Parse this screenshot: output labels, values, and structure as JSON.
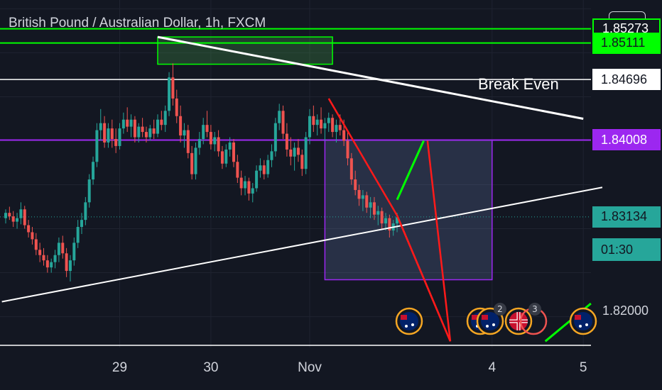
{
  "header": {
    "title": "British Pound / Australian Dollar, 1h, FXCM",
    "currency": "AUD"
  },
  "chart_data": {
    "type": "candlestick",
    "title": "British Pound / Australian Dollar, 1h, FXCM",
    "ylim": [
      1.8165,
      1.856
    ],
    "price_axis": {
      "ticks": [
        "1.82000"
      ],
      "labels": [
        {
          "value": 1.85273,
          "text": "1.85273",
          "bg": "#131722",
          "fg": "#ffffff",
          "border": "#00ff00"
        },
        {
          "value": 1.85111,
          "text": "1.85111",
          "bg": "#00ff00",
          "fg": "#131722"
        },
        {
          "value": 1.84696,
          "text": "1.84696",
          "bg": "#ffffff",
          "fg": "#131722"
        },
        {
          "value": 1.84008,
          "text": "1.84008",
          "bg": "#9c27f0",
          "fg": "#ffffff"
        },
        {
          "value": 1.83134,
          "text": "1.83134",
          "bg": "#26a69a",
          "fg": "#131722"
        }
      ],
      "countdown": "01:30"
    },
    "dates": [
      {
        "label": "29",
        "index": 30
      },
      {
        "label": "30",
        "index": 54
      },
      {
        "label": "Nov",
        "index": 80
      },
      {
        "label": "4",
        "index": 128
      },
      {
        "label": "5",
        "index": 152
      }
    ],
    "annotations": [
      {
        "text": "Break Even"
      }
    ],
    "event_badges": [
      "2",
      "3"
    ],
    "colors": {
      "up": "#26a69a",
      "down": "#ef5350",
      "horizontal_green": "#00ff00",
      "purple": "#9c27f0",
      "trend": "#ffffff",
      "red_lines": "#ff1a1a",
      "green_line": "#00ff00"
    },
    "candles_ohlc": [
      [
        1.8312,
        1.8322,
        1.8306,
        1.8318
      ],
      [
        1.8318,
        1.8325,
        1.831,
        1.8314
      ],
      [
        1.8314,
        1.832,
        1.8302,
        1.8308
      ],
      [
        1.8308,
        1.8318,
        1.83,
        1.8312
      ],
      [
        1.8312,
        1.833,
        1.8305,
        1.8322
      ],
      [
        1.8322,
        1.8326,
        1.83,
        1.8304
      ],
      [
        1.8304,
        1.831,
        1.829,
        1.8296
      ],
      [
        1.8296,
        1.8302,
        1.8282,
        1.8288
      ],
      [
        1.8288,
        1.8295,
        1.827,
        1.8276
      ],
      [
        1.8276,
        1.8284,
        1.8262,
        1.827
      ],
      [
        1.827,
        1.8278,
        1.8258,
        1.8264
      ],
      [
        1.8264,
        1.827,
        1.825,
        1.8256
      ],
      [
        1.8256,
        1.8266,
        1.825,
        1.8262
      ],
      [
        1.8262,
        1.8276,
        1.8255,
        1.827
      ],
      [
        1.827,
        1.829,
        1.8262,
        1.8284
      ],
      [
        1.8284,
        1.8292,
        1.8266,
        1.8272
      ],
      [
        1.8272,
        1.8278,
        1.8245,
        1.8252
      ],
      [
        1.8252,
        1.827,
        1.824,
        1.8264
      ],
      [
        1.8264,
        1.829,
        1.8258,
        1.8284
      ],
      [
        1.8284,
        1.831,
        1.8278,
        1.8302
      ],
      [
        1.8302,
        1.8318,
        1.8294,
        1.831
      ],
      [
        1.831,
        1.8336,
        1.8304,
        1.833
      ],
      [
        1.833,
        1.8362,
        1.8324,
        1.8356
      ],
      [
        1.8356,
        1.8382,
        1.835,
        1.8376
      ],
      [
        1.8376,
        1.842,
        1.837,
        1.8412
      ],
      [
        1.8412,
        1.8436,
        1.84,
        1.842
      ],
      [
        1.842,
        1.8428,
        1.8392,
        1.8398
      ],
      [
        1.8398,
        1.842,
        1.8392,
        1.8414
      ],
      [
        1.8414,
        1.8424,
        1.8392,
        1.8402
      ],
      [
        1.8402,
        1.8414,
        1.8386,
        1.8394
      ],
      [
        1.8394,
        1.842,
        1.839,
        1.8414
      ],
      [
        1.8414,
        1.8432,
        1.8408,
        1.8424
      ],
      [
        1.8424,
        1.8438,
        1.841,
        1.8416
      ],
      [
        1.8416,
        1.843,
        1.8404,
        1.8424
      ],
      [
        1.8424,
        1.8428,
        1.8398,
        1.8404
      ],
      [
        1.8404,
        1.842,
        1.8398,
        1.8416
      ],
      [
        1.8416,
        1.8426,
        1.8404,
        1.841
      ],
      [
        1.841,
        1.8416,
        1.8398,
        1.8404
      ],
      [
        1.8404,
        1.8418,
        1.84,
        1.8414
      ],
      [
        1.8414,
        1.8424,
        1.8402,
        1.8408
      ],
      [
        1.8408,
        1.843,
        1.8404,
        1.8424
      ],
      [
        1.8424,
        1.8434,
        1.8412,
        1.8418
      ],
      [
        1.8418,
        1.844,
        1.841,
        1.8434
      ],
      [
        1.8434,
        1.8478,
        1.8428,
        1.8472
      ],
      [
        1.8472,
        1.8488,
        1.844,
        1.8448
      ],
      [
        1.8448,
        1.8458,
        1.842,
        1.8428
      ],
      [
        1.8428,
        1.844,
        1.8398,
        1.8406
      ],
      [
        1.8406,
        1.842,
        1.8392,
        1.8412
      ],
      [
        1.8412,
        1.8418,
        1.838,
        1.8386
      ],
      [
        1.8386,
        1.8394,
        1.8356,
        1.8362
      ],
      [
        1.8362,
        1.8398,
        1.8356,
        1.8392
      ],
      [
        1.8392,
        1.841,
        1.8384,
        1.8402
      ],
      [
        1.8402,
        1.8426,
        1.8396,
        1.8418
      ],
      [
        1.8418,
        1.8434,
        1.8404,
        1.841
      ],
      [
        1.841,
        1.8418,
        1.839,
        1.8396
      ],
      [
        1.8396,
        1.841,
        1.8388,
        1.8404
      ],
      [
        1.8404,
        1.8412,
        1.8382,
        1.8388
      ],
      [
        1.8388,
        1.8394,
        1.8368,
        1.8374
      ],
      [
        1.8374,
        1.8396,
        1.837,
        1.839
      ],
      [
        1.839,
        1.8404,
        1.8382,
        1.8398
      ],
      [
        1.8398,
        1.8402,
        1.837,
        1.8376
      ],
      [
        1.8376,
        1.8384,
        1.8352,
        1.8358
      ],
      [
        1.8358,
        1.8366,
        1.8338,
        1.8346
      ],
      [
        1.8346,
        1.836,
        1.8338,
        1.8354
      ],
      [
        1.8354,
        1.8358,
        1.8332,
        1.834
      ],
      [
        1.834,
        1.8352,
        1.833,
        1.8346
      ],
      [
        1.8346,
        1.8372,
        1.8342,
        1.8366
      ],
      [
        1.8366,
        1.838,
        1.8358,
        1.8372
      ],
      [
        1.8372,
        1.8378,
        1.8356,
        1.8362
      ],
      [
        1.8362,
        1.8384,
        1.8358,
        1.8378
      ],
      [
        1.8378,
        1.8396,
        1.837,
        1.8388
      ],
      [
        1.8388,
        1.8426,
        1.8382,
        1.842
      ],
      [
        1.842,
        1.8442,
        1.8412,
        1.8434
      ],
      [
        1.8434,
        1.844,
        1.8402,
        1.8408
      ],
      [
        1.8408,
        1.842,
        1.8382,
        1.839
      ],
      [
        1.839,
        1.8404,
        1.8372,
        1.8382
      ],
      [
        1.8382,
        1.8398,
        1.8366,
        1.8392
      ],
      [
        1.8392,
        1.8402,
        1.8376,
        1.8384
      ],
      [
        1.8384,
        1.839,
        1.836,
        1.8368
      ],
      [
        1.8368,
        1.841,
        1.8362,
        1.8404
      ],
      [
        1.8404,
        1.8436,
        1.8396,
        1.8428
      ],
      [
        1.8428,
        1.844,
        1.841,
        1.8418
      ],
      [
        1.8418,
        1.843,
        1.8406,
        1.8424
      ],
      [
        1.8424,
        1.8438,
        1.8408,
        1.8414
      ],
      [
        1.8414,
        1.8426,
        1.84,
        1.842
      ],
      [
        1.842,
        1.8432,
        1.841,
        1.8426
      ],
      [
        1.8426,
        1.843,
        1.8404,
        1.841
      ],
      [
        1.841,
        1.8424,
        1.8398,
        1.8418
      ],
      [
        1.8418,
        1.843,
        1.8406,
        1.8412
      ],
      [
        1.8412,
        1.8424,
        1.8394,
        1.84
      ],
      [
        1.84,
        1.841,
        1.8372,
        1.838
      ],
      [
        1.838,
        1.8386,
        1.835,
        1.8356
      ],
      [
        1.8356,
        1.8366,
        1.8338,
        1.8344
      ],
      [
        1.8344,
        1.835,
        1.8326,
        1.8334
      ],
      [
        1.8334,
        1.8344,
        1.832,
        1.8338
      ],
      [
        1.8338,
        1.8342,
        1.8318,
        1.8324
      ],
      [
        1.8324,
        1.8336,
        1.8312,
        1.833
      ],
      [
        1.833,
        1.8336,
        1.831,
        1.8316
      ],
      [
        1.8316,
        1.8326,
        1.8304,
        1.832
      ],
      [
        1.832,
        1.8324,
        1.83,
        1.8306
      ],
      [
        1.8306,
        1.8318,
        1.8298,
        1.8312
      ],
      [
        1.8312,
        1.8316,
        1.829,
        1.8298
      ],
      [
        1.8298,
        1.831,
        1.8292,
        1.8306
      ],
      [
        1.8306,
        1.8318,
        1.8296,
        1.8313
      ]
    ],
    "drawings": {
      "green_levels": [
        1.85273,
        1.85111
      ],
      "break_even_level": 1.84696,
      "purple_level": 1.84008,
      "green_box": {
        "i0": 40,
        "i1": 86,
        "y0": 1.8487,
        "y1": 1.8518
      },
      "purple_box": {
        "i0": 84,
        "i1": 128,
        "y0": 1.84008,
        "y1": 1.8242
      },
      "descending_trendline": [
        {
          "i": 40,
          "y": 1.8518
        },
        {
          "i": 152,
          "y": 1.8425
        }
      ],
      "ascending_trendline": [
        {
          "i": -1,
          "y": 1.8217
        },
        {
          "i": 157,
          "y": 1.8347
        }
      ],
      "red_lines": [
        [
          {
            "i": 85,
            "y": 1.8448
          },
          {
            "i": 103,
            "y": 1.8315
          },
          {
            "i": 117,
            "y": 1.8172
          },
          {
            "i": 111,
            "y": 1.84
          }
        ],
        [
          {
            "i": 103,
            "y": 1.8315
          },
          {
            "i": 117,
            "y": 1.8172
          }
        ]
      ],
      "green_lines": [
        [
          {
            "i": 103,
            "y": 1.8333
          },
          {
            "i": 110,
            "y": 1.84
          }
        ],
        [
          {
            "i": 142,
            "y": 1.8172
          },
          {
            "i": 154,
            "y": 1.8215
          }
        ]
      ]
    }
  }
}
